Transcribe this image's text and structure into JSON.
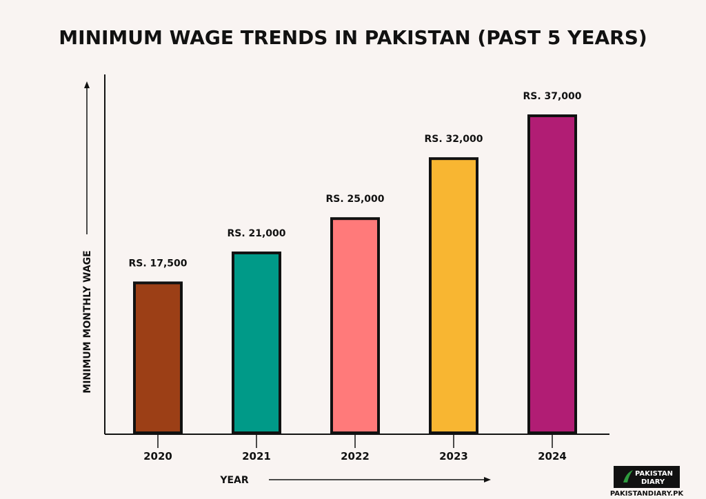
{
  "chart_data": {
    "type": "bar",
    "title": "MINIMUM WAGE TRENDS IN PAKISTAN (PAST 5 YEARS)",
    "xlabel": "YEAR",
    "ylabel": "MINIMUM MONTHLY WAGE",
    "categories": [
      "2020",
      "2021",
      "2022",
      "2023",
      "2024"
    ],
    "values": [
      17500,
      21000,
      25000,
      32000,
      37000
    ],
    "value_labels": [
      "RS. 17,500",
      "RS. 21,000",
      "RS. 25,000",
      "RS. 32,000",
      "RS. 37,000"
    ],
    "colors": [
      "#9c3f16",
      "#009a88",
      "#ff7a7a",
      "#f8b632",
      "#b11d74"
    ],
    "grid": false
  },
  "branding": {
    "logo_text_1": "PAKISTAN",
    "logo_text_2": "DIARY",
    "website": "PAKISTANDIARY.PK"
  },
  "colors": {
    "background": "#f9f4f2",
    "bar_stroke": "#111111",
    "logo_bg": "#111111",
    "logo_accent": "#2e9b3e"
  }
}
